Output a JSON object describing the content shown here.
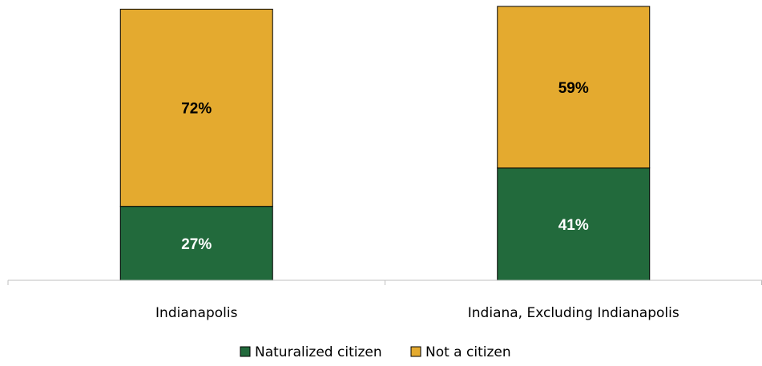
{
  "chart_data": {
    "type": "bar",
    "stacked": true,
    "categories": [
      "Indianapolis",
      "Indiana, Excluding Indianapolis"
    ],
    "series": [
      {
        "name": "Naturalized citizen",
        "values": [
          27,
          41
        ],
        "labels": [
          "27%",
          "41%"
        ],
        "color": "#226a3c",
        "label_color": "#ffffff"
      },
      {
        "name": "Not a citizen",
        "values": [
          72,
          59
        ],
        "labels": [
          "72%",
          "59%"
        ],
        "color": "#e4aa2f",
        "label_color": "#000000"
      }
    ],
    "ylim": [
      0,
      100
    ],
    "legend_position": "bottom",
    "grid": false
  }
}
